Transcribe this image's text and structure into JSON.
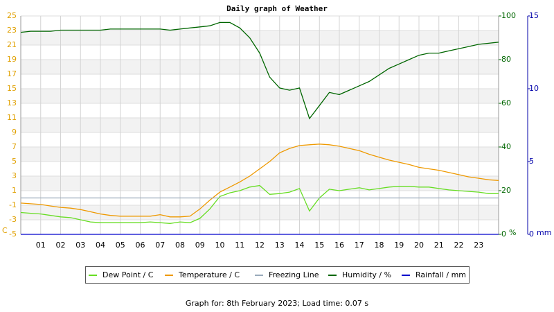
{
  "chart_data": {
    "type": "line",
    "title": "Daily graph of Weather",
    "x": [
      0,
      0.5,
      1,
      1.5,
      2,
      2.5,
      3,
      3.5,
      4,
      4.5,
      5,
      5.5,
      6,
      6.5,
      7,
      7.5,
      8,
      8.5,
      9,
      9.5,
      10,
      10.5,
      11,
      11.5,
      12,
      12.5,
      13,
      13.5,
      14,
      14.5,
      15,
      15.5,
      16,
      16.5,
      17,
      17.5,
      18,
      18.5,
      19,
      19.5,
      20,
      20.5,
      21,
      21.5,
      22,
      22.5,
      23,
      23.5,
      24
    ],
    "xlim": [
      0,
      24
    ],
    "xticks": [
      {
        "value": 1,
        "label": "01"
      },
      {
        "value": 2,
        "label": "02"
      },
      {
        "value": 3,
        "label": "03"
      },
      {
        "value": 4,
        "label": "04"
      },
      {
        "value": 5,
        "label": "05"
      },
      {
        "value": 6,
        "label": "06"
      },
      {
        "value": 7,
        "label": "07"
      },
      {
        "value": 8,
        "label": "08"
      },
      {
        "value": 9,
        "label": "09"
      },
      10,
      11,
      12,
      13,
      14,
      15,
      16,
      17,
      18,
      19,
      20,
      21,
      22,
      23
    ],
    "ylim": [
      -5,
      25
    ],
    "yticks": [
      -5,
      -3,
      -1,
      1,
      3,
      5,
      7,
      9,
      11,
      13,
      15,
      17,
      19,
      21,
      23,
      25
    ],
    "y_unit": "C",
    "y_color": "#e0a000",
    "y2lim": [
      0,
      100
    ],
    "y2ticks": [
      0,
      20,
      40,
      60,
      80,
      100
    ],
    "y2_unit": "%",
    "y2_color": "#006600",
    "y3lim": [
      0,
      15
    ],
    "y3ticks": [
      0,
      5,
      10,
      15
    ],
    "y3_unit": "mm",
    "y3_color": "#0000aa",
    "grid": true,
    "series": [
      {
        "name": "Dew Point / C",
        "color": "#66dd22",
        "axis": "y",
        "values": [
          -2.0,
          -2.1,
          -2.2,
          -2.4,
          -2.6,
          -2.7,
          -3.0,
          -3.3,
          -3.4,
          -3.4,
          -3.4,
          -3.4,
          -3.4,
          -3.3,
          -3.4,
          -3.5,
          -3.3,
          -3.4,
          -2.8,
          -1.5,
          0.2,
          0.7,
          1.0,
          1.5,
          1.7,
          0.5,
          0.6,
          0.8,
          1.3,
          -1.8,
          0.0,
          1.2,
          1.0,
          1.2,
          1.4,
          1.1,
          1.3,
          1.5,
          1.6,
          1.6,
          1.5,
          1.5,
          1.3,
          1.1,
          1.0,
          0.9,
          0.8,
          0.6,
          0.6
        ]
      },
      {
        "name": "Temperature / C",
        "color": "#ee9900",
        "axis": "y",
        "values": [
          -0.7,
          -0.8,
          -0.9,
          -1.1,
          -1.3,
          -1.4,
          -1.6,
          -1.9,
          -2.2,
          -2.4,
          -2.5,
          -2.5,
          -2.5,
          -2.5,
          -2.3,
          -2.6,
          -2.6,
          -2.5,
          -1.5,
          -0.3,
          0.8,
          1.5,
          2.2,
          3.0,
          4.0,
          5.0,
          6.2,
          6.8,
          7.2,
          7.3,
          7.4,
          7.3,
          7.1,
          6.8,
          6.5,
          6.0,
          5.6,
          5.2,
          4.9,
          4.6,
          4.2,
          4.0,
          3.8,
          3.5,
          3.2,
          2.9,
          2.7,
          2.5,
          2.4
        ]
      },
      {
        "name": "Freezing Line",
        "color": "#99aabb",
        "axis": "y",
        "values": [
          0,
          0,
          0,
          0,
          0,
          0,
          0,
          0,
          0,
          0,
          0,
          0,
          0,
          0,
          0,
          0,
          0,
          0,
          0,
          0,
          0,
          0,
          0,
          0,
          0,
          0,
          0,
          0,
          0,
          0,
          0,
          0,
          0,
          0,
          0,
          0,
          0,
          0,
          0,
          0,
          0,
          0,
          0,
          0,
          0,
          0,
          0,
          0,
          0
        ]
      },
      {
        "name": "Humidity / %",
        "color": "#006600",
        "axis": "y2",
        "values": [
          92.5,
          93,
          93,
          93,
          93.5,
          93.5,
          93.5,
          93.5,
          93.5,
          94,
          94,
          94,
          94,
          94,
          94,
          93.5,
          94,
          94.5,
          95,
          95.5,
          97,
          97,
          94.5,
          90,
          83,
          72,
          67,
          66,
          67,
          53,
          59,
          65,
          64,
          66,
          68,
          70,
          73,
          76,
          78,
          80,
          82,
          83,
          83,
          84,
          85,
          86,
          87,
          87.5,
          88
        ]
      },
      {
        "name": "Rainfall / mm",
        "color": "#0000cc",
        "axis": "y3",
        "values": [
          0,
          0,
          0,
          0,
          0,
          0,
          0,
          0,
          0,
          0,
          0,
          0,
          0,
          0,
          0,
          0,
          0,
          0,
          0,
          0,
          0,
          0,
          0,
          0,
          0,
          0,
          0,
          0,
          0,
          0,
          0,
          0,
          0,
          0,
          0,
          0,
          0,
          0,
          0,
          0,
          0,
          0,
          0,
          0,
          0,
          0,
          0,
          0,
          0
        ]
      }
    ]
  },
  "footer": "Graph for: 8th February 2023; Load time: 0.07 s"
}
